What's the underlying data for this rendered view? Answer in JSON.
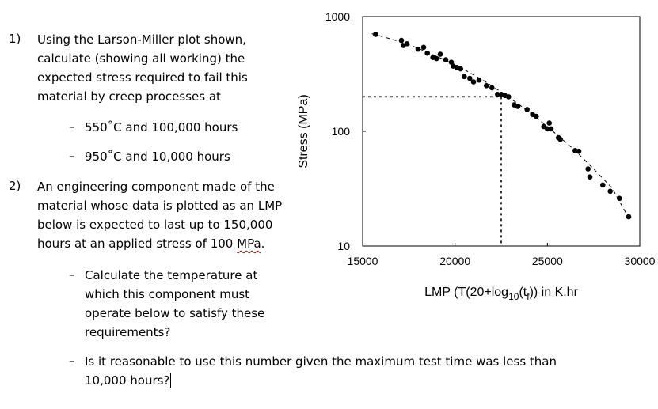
{
  "questions": {
    "q1": {
      "number": "1)",
      "lines": [
        "Using the Larson-Miller plot shown,",
        "calculate (showing all working) the",
        "expected stress required to fail this",
        "material by creep processes at"
      ],
      "bullets": [
        "550˚C and 100,000 hours",
        "950˚C and 10,000 hours"
      ]
    },
    "q2": {
      "number": "2)",
      "lines": [
        "An engineering component made of the",
        "material whose data is plotted as an LMP",
        "below is expected to last up to 150,000",
        "hours at an applied stress of 100 "
      ],
      "unit": "MPa",
      "unit_tail": ".",
      "bullets": [
        [
          "Calculate the temperature at",
          "which this component must",
          "operate below to satisfy these",
          "requirements?"
        ],
        [
          "Is it reasonable to use this number given the maximum test time was less than",
          "10,000 hours?"
        ]
      ]
    },
    "bullet_glyph": "–"
  },
  "chart_data": {
    "type": "scatter",
    "title": "",
    "xlabel_parts": [
      "LMP (T(20+log",
      "10",
      "(t",
      "f",
      ")) in K.hr"
    ],
    "ylabel": "Stress (MPa)",
    "xlim": [
      15000,
      30000
    ],
    "ylim": [
      10,
      1000
    ],
    "yscale": "log",
    "x_ticks": [
      "15000",
      "20000",
      "25000",
      "30000"
    ],
    "y_ticks": [
      "10",
      "100",
      "1000"
    ],
    "grid": false,
    "points": [
      [
        15700,
        700
      ],
      [
        17100,
        620
      ],
      [
        17200,
        560
      ],
      [
        17400,
        580
      ],
      [
        18000,
        520
      ],
      [
        18300,
        540
      ],
      [
        18500,
        480
      ],
      [
        18800,
        440
      ],
      [
        19000,
        430
      ],
      [
        19200,
        470
      ],
      [
        19500,
        420
      ],
      [
        19800,
        400
      ],
      [
        19900,
        370
      ],
      [
        20100,
        360
      ],
      [
        20300,
        350
      ],
      [
        20500,
        300
      ],
      [
        20800,
        290
      ],
      [
        21000,
        270
      ],
      [
        21300,
        280
      ],
      [
        21700,
        250
      ],
      [
        22000,
        240
      ],
      [
        22300,
        210
      ],
      [
        22500,
        210
      ],
      [
        22700,
        205
      ],
      [
        22900,
        200
      ],
      [
        23200,
        170
      ],
      [
        23400,
        165
      ],
      [
        23900,
        155
      ],
      [
        24200,
        140
      ],
      [
        24400,
        135
      ],
      [
        24800,
        110
      ],
      [
        25000,
        105
      ],
      [
        25100,
        118
      ],
      [
        25200,
        105
      ],
      [
        25600,
        88
      ],
      [
        25700,
        85
      ],
      [
        26500,
        68
      ],
      [
        26700,
        67
      ],
      [
        27200,
        47
      ],
      [
        27300,
        40
      ],
      [
        28000,
        34
      ],
      [
        28400,
        30
      ],
      [
        28900,
        26
      ],
      [
        29400,
        18
      ]
    ],
    "trend": [
      [
        15500,
        710
      ],
      [
        16500,
        640
      ],
      [
        17500,
        570
      ],
      [
        18500,
        490
      ],
      [
        19500,
        415
      ],
      [
        20500,
        345
      ],
      [
        21500,
        280
      ],
      [
        22500,
        220
      ],
      [
        23500,
        170
      ],
      [
        24500,
        128
      ],
      [
        25500,
        94
      ],
      [
        26500,
        68
      ],
      [
        27500,
        47
      ],
      [
        28500,
        32
      ],
      [
        29500,
        16.5
      ]
    ],
    "guide": {
      "x": 22500,
      "y": 200
    }
  }
}
